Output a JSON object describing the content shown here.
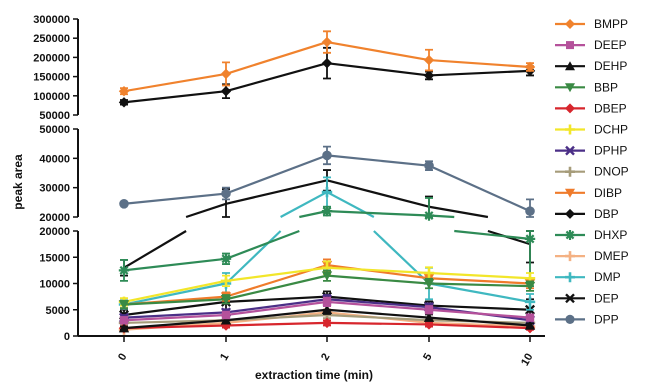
{
  "chart_data": {
    "type": "line",
    "xlabel": "extraction time (min)",
    "ylabel": "peak area",
    "categories": [
      "0",
      "1",
      "2",
      "5",
      "10"
    ],
    "y_segments": [
      {
        "range": [
          0,
          20000
        ],
        "ticks": [
          0,
          5000,
          10000,
          15000,
          20000
        ],
        "tick_labels": [
          "0",
          "5000",
          "10000",
          "15000",
          "20000"
        ]
      },
      {
        "range": [
          20000,
          50000
        ],
        "ticks": [
          20000,
          30000,
          40000,
          50000
        ],
        "tick_labels": [
          "20000",
          "30000",
          "40000",
          "50000"
        ]
      },
      {
        "range": [
          50000,
          300000
        ],
        "ticks": [
          50000,
          100000,
          150000,
          200000,
          250000,
          300000
        ],
        "tick_labels": [
          "50000",
          "100000",
          "150000",
          "200000",
          "250000",
          "300000"
        ]
      }
    ],
    "legend_position": "right",
    "series": [
      {
        "name": "BMPP",
        "color": "#f0822d",
        "marker": "diamond",
        "values": [
          112000,
          157000,
          240000,
          193000,
          175000
        ],
        "errors": [
          8000,
          30000,
          28000,
          27000,
          10000
        ]
      },
      {
        "name": "DEEP",
        "color": "#b5519b",
        "marker": "square",
        "values": [
          3000,
          4000,
          6500,
          5000,
          3500
        ],
        "errors": [
          500,
          600,
          800,
          700,
          500
        ]
      },
      {
        "name": "DEHP",
        "color": "#111111",
        "marker": "triangle",
        "values": [
          1500,
          3000,
          5000,
          3500,
          2000
        ],
        "errors": [
          300,
          500,
          800,
          600,
          400
        ]
      },
      {
        "name": "BBP",
        "color": "#3a8a44",
        "marker": "triangle-down",
        "values": [
          6000,
          7000,
          11500,
          10000,
          9500
        ],
        "errors": [
          700,
          800,
          1000,
          900,
          900
        ]
      },
      {
        "name": "DBEP",
        "color": "#d7262d",
        "marker": "diamond",
        "values": [
          1500,
          2000,
          2500,
          2200,
          1500
        ],
        "errors": [
          300,
          400,
          500,
          400,
          300
        ]
      },
      {
        "name": "DCHP",
        "color": "#f2e62a",
        "marker": "plus",
        "values": [
          6500,
          10500,
          13000,
          12000,
          11000
        ],
        "errors": [
          700,
          1000,
          1200,
          1100,
          1000
        ]
      },
      {
        "name": "DPHP",
        "color": "#4b2f87",
        "marker": "x",
        "values": [
          3500,
          4500,
          7000,
          5500,
          3000
        ],
        "errors": [
          500,
          600,
          800,
          700,
          500
        ]
      },
      {
        "name": "DNOP",
        "color": "#a69c7a",
        "marker": "plus",
        "values": [
          2500,
          3000,
          4000,
          3000,
          2500
        ],
        "errors": [
          400,
          500,
          600,
          500,
          400
        ]
      },
      {
        "name": "DIBP",
        "color": "#ef7b2b",
        "marker": "triangle-down",
        "values": [
          6000,
          7500,
          13500,
          11000,
          10000
        ],
        "errors": [
          700,
          800,
          1100,
          1000,
          900
        ]
      },
      {
        "name": "DBP",
        "color": "#111111",
        "marker": "diamond",
        "values": [
          83000,
          112000,
          185000,
          153000,
          165000
        ],
        "errors": [
          6000,
          18000,
          40000,
          10000,
          12000
        ]
      },
      {
        "name": "DHXP",
        "color": "#2e8b57",
        "marker": "star",
        "values": [
          12500,
          14700,
          22000,
          20500,
          18500
        ],
        "errors": [
          2000,
          1000,
          1500,
          6000,
          9000
        ]
      },
      {
        "name": "DMEP",
        "color": "#f4b183",
        "marker": "plus",
        "values": [
          1200,
          2500,
          4500,
          2500,
          1800
        ],
        "errors": [
          300,
          400,
          600,
          400,
          300
        ]
      },
      {
        "name": "DMP",
        "color": "#3fb8c0",
        "marker": "plus",
        "values": [
          6000,
          10000,
          28500,
          10000,
          6500
        ],
        "errors": [
          800,
          2000,
          5000,
          3000,
          1500
        ]
      },
      {
        "name": "DEP",
        "color": "#111111",
        "marker": "x",
        "values": [
          4000,
          6500,
          7500,
          5800,
          5000
        ],
        "errors": [
          1000,
          1500,
          1000,
          800,
          2000
        ]
      },
      {
        "name": "DPP",
        "color": "#5c7087",
        "marker": "circle",
        "values": [
          24500,
          28000,
          41000,
          37500,
          22000
        ],
        "errors": [
          500,
          2000,
          3000,
          1500,
          4000
        ]
      }
    ]
  },
  "extra_lines": [
    {
      "color": "#111111",
      "values": [
        13000,
        24500,
        32500,
        23500,
        17500
      ],
      "errors": [
        1500,
        5000,
        3500,
        3500,
        3500
      ]
    }
  ]
}
